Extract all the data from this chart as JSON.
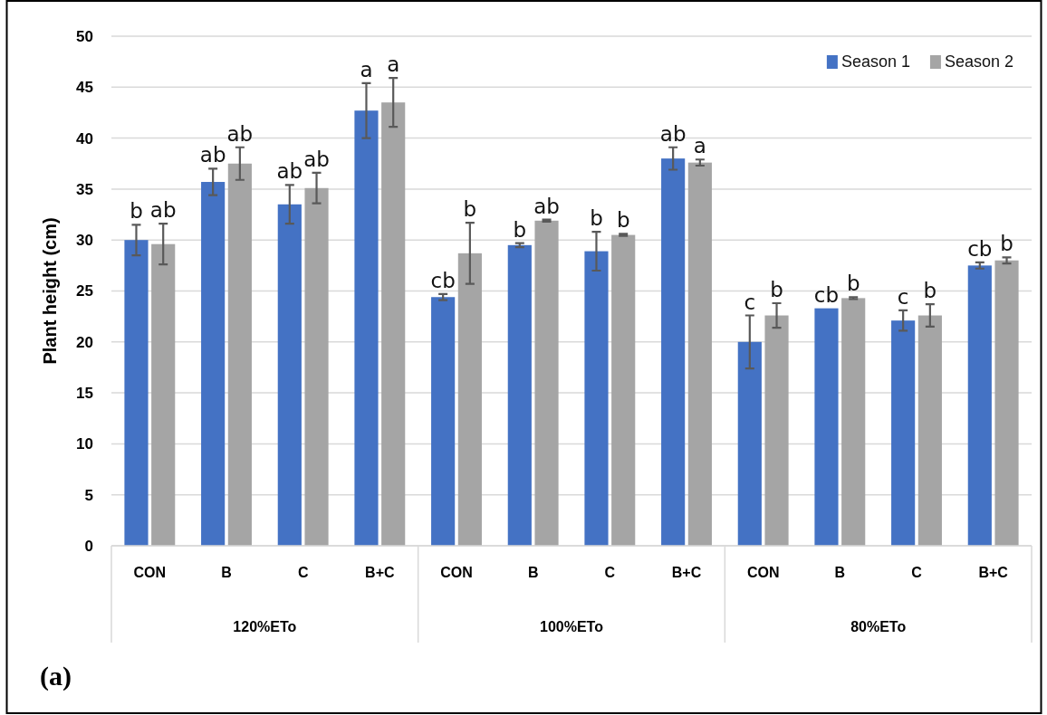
{
  "chart_data": {
    "type": "bar",
    "ylabel": "Plant height (cm)",
    "categories": [
      "CON",
      "B",
      "C",
      "B+C",
      "CON",
      "B",
      "C",
      "B+C",
      "CON",
      "B",
      "C",
      "B+C"
    ],
    "series": [
      {
        "name": "Season 1",
        "color": "#4472c4",
        "values": [
          30.0,
          35.7,
          33.5,
          42.7,
          24.4,
          29.5,
          28.9,
          38.0,
          20.0,
          23.3,
          22.1,
          27.5
        ],
        "errors": [
          1.5,
          1.3,
          1.9,
          2.7,
          0.3,
          0.2,
          1.9,
          1.1,
          2.6,
          null,
          1.0,
          0.3
        ],
        "value_labels": [
          "b",
          "ab",
          "ab",
          "a",
          "cb",
          "b",
          "b",
          "ab",
          "c",
          "cb",
          "c",
          "cb"
        ]
      },
      {
        "name": "Season 2",
        "color": "#a5a5a5",
        "values": [
          29.6,
          37.5,
          35.1,
          43.5,
          28.7,
          31.9,
          30.5,
          37.6,
          22.6,
          24.3,
          22.6,
          28.0
        ],
        "errors": [
          2.0,
          1.6,
          1.5,
          2.4,
          3.0,
          0.1,
          0.1,
          0.3,
          1.2,
          0.1,
          1.1,
          0.3
        ],
        "value_labels": [
          "ab",
          "ab",
          "ab",
          "a",
          "b",
          "ab",
          "b",
          "a",
          "b",
          "b",
          "b",
          "b"
        ]
      }
    ],
    "ylim": [
      0,
      50
    ],
    "yticks": [
      0,
      5,
      10,
      15,
      20,
      25,
      30,
      35,
      40,
      45,
      50
    ],
    "grid": "y",
    "legend": "top right",
    "annotations": [
      "(a)",
      "120%ETo",
      "100%ETo",
      "80%ETo"
    ]
  }
}
